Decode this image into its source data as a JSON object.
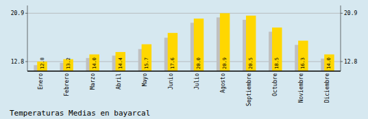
{
  "chart_data": {
    "type": "bar",
    "title": "Temperaturas Medias en bayarcal",
    "categories": [
      "Enero",
      "Febrero",
      "Marzo",
      "Abril",
      "Mayo",
      "Junio",
      "Julio",
      "Agosto",
      "Septiembre",
      "Octubre",
      "Noviembre",
      "Diciembre"
    ],
    "series": [
      {
        "color": "#C0C0C0",
        "values": [
          12.2,
          12.6,
          13.4,
          13.8,
          14.9,
          16.8,
          19.3,
          20.2,
          19.8,
          17.8,
          15.6,
          13.3
        ]
      },
      {
        "color": "#FFD700",
        "values": [
          12.8,
          13.2,
          14.0,
          14.4,
          15.7,
          17.6,
          20.0,
          20.9,
          20.5,
          18.5,
          16.3,
          14.0
        ],
        "value_labels": [
          "12.8",
          "13.2",
          "14.0",
          "14.4",
          "15.7",
          "17.6",
          "20.0",
          "20.9",
          "20.5",
          "18.5",
          "16.3",
          "14.0"
        ],
        "data_labels": true
      }
    ],
    "ylim": [
      11.2,
      22.2
    ],
    "yticks": [
      12.8,
      20.9
    ],
    "y2lim": [
      11.2,
      22.2
    ],
    "y2ticks": [
      12.8,
      20.9
    ],
    "grid": true
  }
}
